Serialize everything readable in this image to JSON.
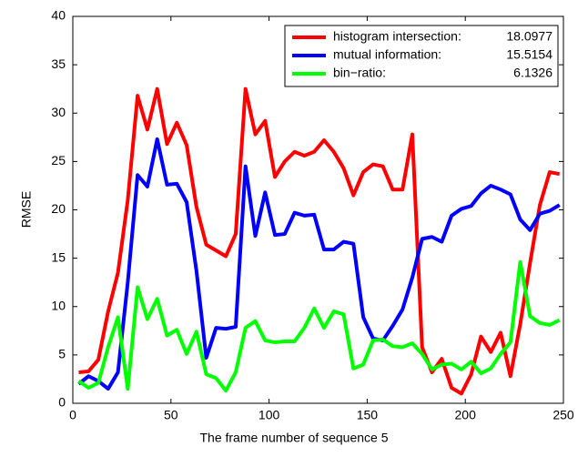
{
  "chart_data": {
    "type": "line",
    "xlabel": "The frame number of sequence 5",
    "ylabel": "RMSE",
    "xlim": [
      0,
      250
    ],
    "xticks": [
      0,
      50,
      100,
      150,
      200,
      250
    ],
    "ylim": [
      0,
      40
    ],
    "yticks": [
      0,
      5,
      10,
      15,
      20,
      25,
      30,
      35,
      40
    ],
    "legend_position": "upper right",
    "x": [
      3,
      8,
      13,
      18,
      23,
      28,
      33,
      38,
      43,
      48,
      53,
      58,
      63,
      68,
      73,
      78,
      83,
      88,
      93,
      98,
      103,
      108,
      113,
      118,
      123,
      128,
      133,
      138,
      143,
      148,
      153,
      158,
      163,
      168,
      173,
      178,
      183,
      188,
      193,
      198,
      203,
      208,
      213,
      218,
      223,
      228,
      233,
      238,
      243,
      248
    ],
    "series": [
      {
        "name": "histogram intersection:",
        "legend_value": "18.0977",
        "color": "#ff0000",
        "values": [
          3.2,
          3.3,
          4.5,
          9.5,
          13.5,
          21,
          31.8,
          28.3,
          32.5,
          26.8,
          29,
          26.7,
          20.3,
          16.4,
          15.8,
          15.2,
          17.5,
          32.5,
          27.8,
          29.2,
          23.4,
          25,
          26,
          25.6,
          26,
          27.2,
          26,
          24.3,
          21.5,
          23.9,
          24.7,
          24.5,
          22.1,
          22.1,
          27.8,
          5.8,
          3.2,
          4.6,
          1.6,
          1,
          3,
          6.9,
          5.3,
          7.3,
          2.8,
          8.2,
          14.5,
          20.5,
          23.9,
          23.7
        ]
      },
      {
        "name": "mutual information:",
        "legend_value": "15.5154",
        "color": "#0000ff",
        "values": [
          2,
          2.8,
          2.3,
          1.5,
          3.2,
          12.5,
          23.6,
          22.4,
          27.3,
          22.6,
          22.7,
          20.8,
          13.7,
          4.7,
          7.8,
          7.7,
          7.9,
          24.5,
          17.3,
          21.8,
          17.4,
          17.5,
          19.7,
          19.4,
          19.5,
          15.9,
          15.9,
          16.7,
          16.5,
          8.9,
          6.7,
          6.5,
          8,
          9.7,
          13,
          17,
          17.2,
          16.7,
          19.4,
          20.1,
          20.4,
          21.7,
          22.5,
          22.1,
          21.6,
          19,
          17.9,
          19.6,
          19.9,
          20.5
        ]
      },
      {
        "name": "bin−ratio:",
        "legend_value": "6.1326",
        "color": "#00ff00",
        "values": [
          2.3,
          1.6,
          2.1,
          5.8,
          8.9,
          1.5,
          12,
          8.7,
          10.8,
          7,
          7.6,
          5.1,
          7.4,
          3,
          2.6,
          1.3,
          3.2,
          7.8,
          8.5,
          6.5,
          6.3,
          6.4,
          6.4,
          7.8,
          9.8,
          7.8,
          9.5,
          9.2,
          3.6,
          4,
          6.5,
          6.6,
          5.9,
          5.8,
          6.2,
          5.1,
          3.5,
          4,
          4.1,
          3.5,
          4.3,
          3.1,
          3.6,
          5.1,
          6.3,
          14.6,
          9,
          8.3,
          8.1,
          8.6
        ]
      }
    ]
  }
}
